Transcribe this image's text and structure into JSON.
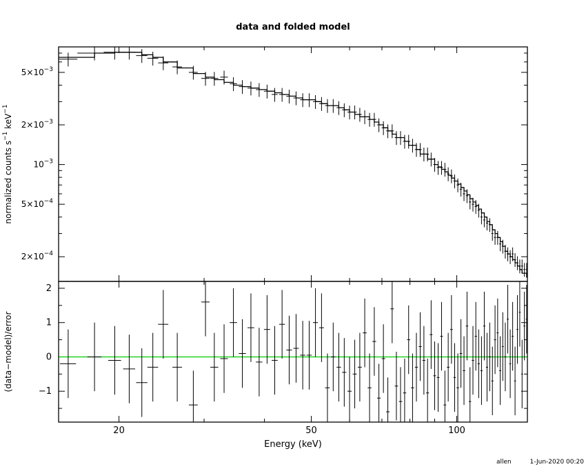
{
  "chart_data": [
    {
      "panel": "top",
      "type": "line",
      "title": "data and folded model",
      "ylabel": "normalized counts s$^{-1}$ keV$^{-1}$",
      "ylabel_parts": {
        "main": "normalized counts s",
        "sup1": "−1",
        "mid": " keV",
        "sup2": "−1"
      },
      "xscale": "log",
      "yscale": "log",
      "xlim": [
        15,
        140
      ],
      "ylim": [
        0.00013,
        0.0078
      ],
      "y_ticks": [
        {
          "value": 0.005,
          "mantissa": "5×10",
          "exp": "−3"
        },
        {
          "value": 0.002,
          "mantissa": "2×10",
          "exp": "−3"
        },
        {
          "value": 0.001,
          "mantissa": "10",
          "exp": "−3"
        },
        {
          "value": 0.0005,
          "mantissa": "5×10",
          "exp": "−4"
        },
        {
          "value": 0.0002,
          "mantissa": "2×10",
          "exp": "−4"
        }
      ],
      "grid": false,
      "series": [
        {
          "role": "data",
          "x": [
            15.7,
            17.8,
            19.6,
            21.0,
            22.3,
            23.5,
            24.7,
            26.4,
            28.5,
            30.2,
            31.5,
            33.0,
            34.5,
            36.0,
            37.5,
            39.0,
            40.5,
            42.0,
            43.5,
            45.0,
            46.5,
            48.0,
            49.5,
            51.0,
            52.5,
            54.0,
            55.5,
            57.0,
            58.5,
            60.0,
            61.5,
            63.0,
            64.5,
            66.0,
            67.5,
            69.0,
            70.5,
            72.0,
            73.5,
            75.0,
            76.5,
            78.0,
            79.5,
            81.0,
            82.5,
            84.0,
            85.5,
            87.0,
            88.5,
            90.0,
            91.5,
            93.0,
            94.5,
            96.0,
            97.5,
            99.0,
            100.5,
            102.0,
            103.5,
            105.0,
            106.5,
            108.0,
            109.5,
            111.0,
            112.5,
            114.0,
            115.5,
            117.0,
            118.5,
            120.0,
            121.5,
            123.0,
            124.5,
            126.0,
            127.5,
            129.0,
            130.5,
            132.0,
            133.5,
            135.0,
            136.5,
            138.0,
            139.5
          ],
          "y": [
            0.0063,
            0.007,
            0.0071,
            0.0071,
            0.0067,
            0.0064,
            0.0059,
            0.0055,
            0.005,
            0.0045,
            0.0045,
            0.0046,
            0.0041,
            0.0039,
            0.0038,
            0.0037,
            0.0036,
            0.0034,
            0.0034,
            0.0033,
            0.0032,
            0.0031,
            0.0031,
            0.003,
            0.0029,
            0.0028,
            0.0028,
            0.0027,
            0.0026,
            0.0025,
            0.0025,
            0.0024,
            0.0023,
            0.0022,
            0.0022,
            0.002,
            0.0019,
            0.0018,
            0.0018,
            0.0016,
            0.0016,
            0.0015,
            0.0015,
            0.0014,
            0.0013,
            0.0013,
            0.0012,
            0.0012,
            0.0011,
            0.001,
            0.00095,
            0.00095,
            0.00092,
            0.00085,
            0.00082,
            0.00075,
            0.0007,
            0.00065,
            0.0006,
            0.00058,
            0.00052,
            0.0005,
            0.00048,
            0.00045,
            0.0004,
            0.00038,
            0.00036,
            0.00035,
            0.0003,
            0.00028,
            0.00028,
            0.00025,
            0.00024,
            0.00022,
            0.00021,
            0.0002,
            0.00021,
            0.00019,
            0.00018,
            0.00017,
            0.00017,
            0.00016,
            0.00016
          ],
          "xerr": [
            0.7,
            1.4,
            1.0,
            0.7,
            0.6,
            0.6,
            0.6,
            0.6,
            0.6,
            0.6,
            0.6,
            0.6,
            0.6,
            0.6,
            0.6,
            0.6,
            0.6,
            0.6,
            0.6,
            0.6,
            0.6,
            0.6,
            0.6,
            0.6,
            0.6,
            0.6,
            0.6,
            0.6,
            0.6,
            0.6,
            0.6,
            0.6,
            0.6,
            0.6,
            0.6,
            0.6,
            0.6,
            0.6,
            0.6,
            0.6,
            0.6,
            0.6,
            0.6,
            0.6,
            0.6,
            0.6,
            0.6,
            0.6,
            0.6,
            0.6,
            0.6,
            0.6,
            0.6,
            0.6,
            0.6,
            0.6,
            0.6,
            0.6,
            0.6,
            0.6,
            0.6,
            0.6,
            0.6,
            0.6,
            0.6,
            0.6,
            0.6,
            0.6,
            0.6,
            0.6,
            0.6,
            0.6,
            0.6,
            0.6,
            0.6,
            0.6,
            0.6,
            0.6,
            0.6,
            0.6,
            0.6,
            0.6,
            0.6
          ],
          "yerr_frac": 0.12
        },
        {
          "role": "model",
          "x_edges": [
            15,
            17.8,
            19.6,
            21.0,
            22.3,
            23.5,
            24.7,
            26.4,
            28.5,
            30.2,
            31.5,
            33.0,
            34.5,
            36.0,
            37.5,
            39.0,
            40.5,
            42.0,
            43.5,
            45.0,
            46.5,
            48.0,
            49.5,
            51.0,
            52.5,
            54.0,
            55.5,
            57.0,
            58.5,
            60.0,
            61.5,
            63.0,
            64.5,
            66.0,
            67.5,
            69.0,
            70.5,
            72.0,
            73.5,
            75.0,
            76.5,
            78.0,
            79.5,
            81.0,
            82.5,
            84.0,
            85.5,
            87.0,
            88.5,
            90.0,
            91.5,
            93.0,
            94.5,
            96.0,
            97.5,
            99.0,
            100.5,
            102.0,
            103.5,
            105.0,
            106.5,
            108.0,
            109.5,
            111.0,
            112.5,
            114.0,
            115.5,
            117.0,
            118.5,
            120.0,
            121.5,
            123.0,
            124.5,
            126.0,
            127.5,
            129.0,
            130.5,
            132.0,
            133.5,
            135.0,
            136.5,
            138.0,
            139.5,
            140
          ],
          "y": [
            0.0065,
            0.007,
            0.0071,
            0.0071,
            0.0068,
            0.0065,
            0.006,
            0.0054,
            0.0049,
            0.0046,
            0.0044,
            0.0042,
            0.004,
            0.0039,
            0.0038,
            0.0037,
            0.0036,
            0.0035,
            0.0034,
            0.0033,
            0.0032,
            0.0031,
            0.0031,
            0.003,
            0.0029,
            0.0028,
            0.0028,
            0.0027,
            0.0026,
            0.0025,
            0.0024,
            0.0023,
            0.0023,
            0.0022,
            0.0021,
            0.002,
            0.0019,
            0.0018,
            0.0017,
            0.0016,
            0.0016,
            0.0015,
            0.0014,
            0.0014,
            0.0013,
            0.0012,
            0.0012,
            0.0011,
            0.0011,
            0.001,
            0.00096,
            0.00092,
            0.00088,
            0.00083,
            0.00079,
            0.00075,
            0.00071,
            0.00067,
            0.00063,
            0.00059,
            0.00055,
            0.00052,
            0.00049,
            0.00046,
            0.00043,
            0.0004,
            0.00037,
            0.00035,
            0.00032,
            0.0003,
            0.00028,
            0.00026,
            0.00024,
            0.00022,
            0.00021,
            0.0002,
            0.00019,
            0.00018,
            0.00017,
            0.00016,
            0.00015,
            0.00015,
            0.00014,
            0.00014
          ]
        }
      ]
    },
    {
      "panel": "bottom",
      "type": "scatter",
      "xlabel": "Energy (keV)",
      "ylabel": "(data−model)/error",
      "xscale": "log",
      "xlim": [
        15,
        140
      ],
      "ylim": [
        -1.9,
        2.2
      ],
      "x_ticks": [
        {
          "value": 20,
          "label": "20"
        },
        {
          "value": 50,
          "label": "50"
        },
        {
          "value": 100,
          "label": "100"
        }
      ],
      "y_ticks": [
        {
          "value": 2,
          "label": "2"
        },
        {
          "value": 1,
          "label": "1"
        },
        {
          "value": 0,
          "label": "0"
        },
        {
          "value": -1,
          "label": "−1"
        }
      ],
      "zero_line_color": "#00cc00",
      "series": [
        {
          "role": "residuals",
          "x": [
            15.7,
            17.8,
            19.6,
            21.0,
            22.3,
            23.5,
            24.7,
            26.4,
            28.5,
            30.2,
            31.5,
            33.0,
            34.5,
            36.0,
            37.5,
            39.0,
            40.5,
            42.0,
            43.5,
            45.0,
            46.5,
            48.0,
            49.5,
            51.0,
            52.5,
            54.0,
            55.5,
            57.0,
            58.5,
            60.0,
            61.5,
            63.0,
            64.5,
            66.0,
            67.5,
            69.0,
            70.5,
            72.0,
            73.5,
            75.0,
            76.5,
            78.0,
            79.5,
            81.0,
            82.5,
            84.0,
            85.5,
            87.0,
            88.5,
            90.0,
            91.5,
            93.0,
            94.5,
            96.0,
            97.5,
            99.0,
            100.5,
            102.0,
            103.5,
            105.0,
            106.5,
            108.0,
            109.5,
            111.0,
            112.5,
            114.0,
            115.5,
            117.0,
            118.5,
            120.0,
            121.5,
            123.0,
            124.5,
            126.0,
            127.5,
            129.0,
            130.5,
            132.0,
            133.5,
            135.0,
            136.5,
            138.0,
            139.5
          ],
          "y": [
            -0.2,
            0.0,
            -0.1,
            -0.35,
            -0.75,
            -0.3,
            0.95,
            -0.3,
            -1.4,
            1.6,
            -0.3,
            -0.05,
            1.0,
            0.1,
            0.85,
            -0.15,
            0.8,
            -0.1,
            0.95,
            0.2,
            0.25,
            0.05,
            0.05,
            1.0,
            0.85,
            -0.9,
            0.0,
            -0.3,
            -0.45,
            -1.0,
            -0.5,
            -0.3,
            0.7,
            -0.9,
            0.45,
            -1.2,
            -0.05,
            -1.6,
            1.4,
            -0.85,
            -1.3,
            -1.05,
            0.5,
            -0.9,
            -0.3,
            0.3,
            -0.1,
            -1.05,
            0.65,
            -0.55,
            -0.6,
            0.6,
            -1.4,
            -0.3,
            0.8,
            -0.6,
            -0.9,
            0.1,
            -0.4,
            0.9,
            -1.3,
            -0.1,
            0.6,
            -0.2,
            -0.4,
            0.9,
            -0.3,
            0.0,
            -0.7,
            0.5,
            0.7,
            -0.4,
            0.3,
            0.0,
            1.1,
            -0.2,
            0.6,
            -0.7,
            0.8,
            1.3,
            -0.5,
            0.9,
            1.1
          ],
          "xerr": 0.6,
          "yerr": 1.0
        }
      ]
    }
  ],
  "footer": {
    "user": "allen",
    "timestamp": "1-Jun-2020 00:20"
  }
}
